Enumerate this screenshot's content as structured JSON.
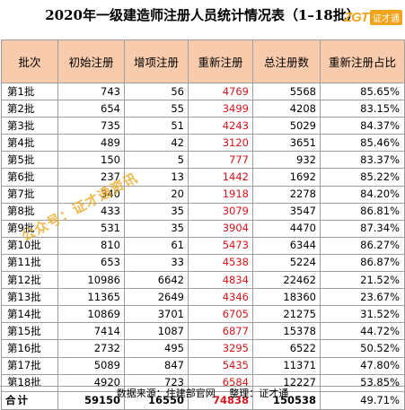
{
  "title": "2020年一级建造师注册人员统计情况表（1–18批）",
  "logo": {
    "mark": "ZGT",
    "text": "证才通"
  },
  "watermark": "公众号：证才通资讯",
  "table": {
    "headers": [
      "批次",
      "初始注册",
      "增项注册",
      "重新注册",
      "总注册数",
      "重新注册占比"
    ],
    "rows": [
      {
        "batch": "第1批",
        "initial": "743",
        "additional": "56",
        "re": "4769",
        "total": "5568",
        "ratio": "85.65%"
      },
      {
        "batch": "第2批",
        "initial": "654",
        "additional": "55",
        "re": "3499",
        "total": "4208",
        "ratio": "83.15%"
      },
      {
        "batch": "第3批",
        "initial": "735",
        "additional": "51",
        "re": "4243",
        "total": "5029",
        "ratio": "84.37%"
      },
      {
        "batch": "第4批",
        "initial": "489",
        "additional": "42",
        "re": "3120",
        "total": "3651",
        "ratio": "85.46%"
      },
      {
        "batch": "第5批",
        "initial": "150",
        "additional": "5",
        "re": "777",
        "total": "932",
        "ratio": "83.37%"
      },
      {
        "batch": "第6批",
        "initial": "237",
        "additional": "13",
        "re": "1442",
        "total": "1692",
        "ratio": "85.22%"
      },
      {
        "batch": "第7批",
        "initial": "340",
        "additional": "20",
        "re": "1918",
        "total": "2278",
        "ratio": "84.20%"
      },
      {
        "batch": "第8批",
        "initial": "433",
        "additional": "35",
        "re": "3079",
        "total": "3547",
        "ratio": "86.81%"
      },
      {
        "batch": "第9批",
        "initial": "531",
        "additional": "35",
        "re": "3904",
        "total": "4470",
        "ratio": "87.34%"
      },
      {
        "batch": "第10批",
        "initial": "810",
        "additional": "61",
        "re": "5473",
        "total": "6344",
        "ratio": "86.27%"
      },
      {
        "batch": "第11批",
        "initial": "653",
        "additional": "33",
        "re": "4538",
        "total": "5224",
        "ratio": "86.87%"
      },
      {
        "batch": "第12批",
        "initial": "10986",
        "additional": "6642",
        "re": "4834",
        "total": "22462",
        "ratio": "21.52%"
      },
      {
        "batch": "第13批",
        "initial": "11365",
        "additional": "2649",
        "re": "4346",
        "total": "18360",
        "ratio": "23.67%"
      },
      {
        "batch": "第14批",
        "initial": "10869",
        "additional": "3701",
        "re": "6705",
        "total": "21275",
        "ratio": "31.52%"
      },
      {
        "batch": "第15批",
        "initial": "7414",
        "additional": "1087",
        "re": "6877",
        "total": "15378",
        "ratio": "44.72%"
      },
      {
        "batch": "第16批",
        "initial": "2732",
        "additional": "495",
        "re": "3295",
        "total": "6522",
        "ratio": "50.52%"
      },
      {
        "batch": "第17批",
        "initial": "5089",
        "additional": "847",
        "re": "5435",
        "total": "11371",
        "ratio": "47.80%"
      },
      {
        "batch": "第18批",
        "initial": "4920",
        "additional": "723",
        "re": "6584",
        "total": "12227",
        "ratio": "53.85%"
      }
    ],
    "total": {
      "batch": "合计",
      "initial": "59150",
      "additional": "16550",
      "re": "74838",
      "total": "150538",
      "ratio": "49.71%"
    }
  },
  "source": {
    "label": "数据来源：住建部官网",
    "organizer": "整理：证才通"
  },
  "colors": {
    "header_bg": "#f8cbad",
    "re_register_text": "#d9141b",
    "logo_orange": "#f0a41e"
  }
}
